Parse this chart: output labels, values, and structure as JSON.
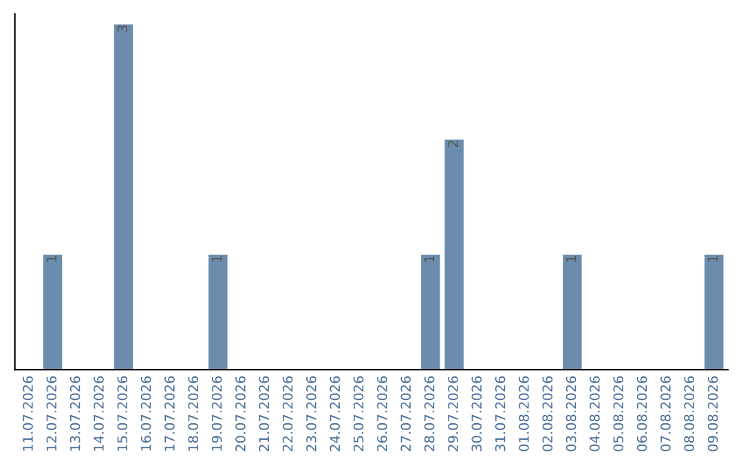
{
  "chart_data": {
    "type": "bar",
    "categories": [
      "11.07.2026",
      "12.07.2026",
      "13.07.2026",
      "14.07.2026",
      "15.07.2026",
      "16.07.2026",
      "17.07.2026",
      "18.07.2026",
      "19.07.2026",
      "20.07.2026",
      "21.07.2026",
      "22.07.2026",
      "23.07.2026",
      "24.07.2026",
      "25.07.2026",
      "26.07.2026",
      "27.07.2026",
      "28.07.2026",
      "29.07.2026",
      "30.07.2026",
      "31.07.2026",
      "01.08.2026",
      "02.08.2026",
      "03.08.2026",
      "04.08.2026",
      "05.08.2026",
      "06.08.2026",
      "07.08.2026",
      "08.08.2026",
      "09.08.2026"
    ],
    "values": [
      0,
      1,
      0,
      0,
      3,
      0,
      0,
      0,
      1,
      0,
      0,
      0,
      0,
      0,
      0,
      0,
      0,
      1,
      2,
      0,
      0,
      0,
      0,
      1,
      0,
      0,
      0,
      0,
      0,
      1
    ],
    "value_labels": [
      null,
      "1",
      null,
      null,
      "3",
      null,
      null,
      null,
      "1",
      null,
      null,
      null,
      null,
      null,
      null,
      null,
      null,
      "1",
      "2",
      null,
      null,
      null,
      null,
      "1",
      null,
      null,
      null,
      null,
      null,
      "1"
    ],
    "color": "#6b8cad",
    "tick_labels": "x",
    "grid": false
  }
}
